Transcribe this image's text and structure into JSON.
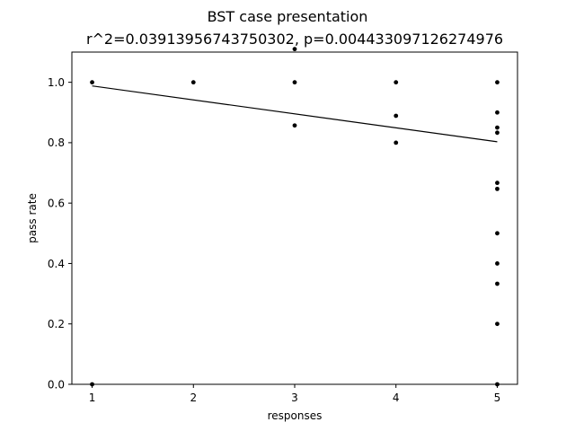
{
  "chart_data": {
    "type": "scatter",
    "title": "BST case presentation",
    "subtitle": "r^2=0.03913956743750302, p=0.004433097126274976",
    "xlabel": "responses",
    "ylabel": "pass rate",
    "xlim": [
      0.8,
      5.2
    ],
    "ylim": [
      0.0,
      1.1
    ],
    "x_ticks": [
      1,
      2,
      3,
      4,
      5
    ],
    "x_tick_labels": [
      "1",
      "2",
      "3",
      "4",
      "5"
    ],
    "y_ticks": [
      0.0,
      0.2,
      0.4,
      0.6,
      0.8,
      1.0
    ],
    "y_tick_labels": [
      "0.0",
      "0.2",
      "0.4",
      "0.6",
      "0.8",
      "1.0"
    ],
    "grid": false,
    "point_color": "#000000",
    "line_color": "#000000",
    "points": [
      {
        "x": 1,
        "y": 1.0
      },
      {
        "x": 1,
        "y": 0.0
      },
      {
        "x": 2,
        "y": 1.0
      },
      {
        "x": 3,
        "y": 1.11
      },
      {
        "x": 3,
        "y": 1.0
      },
      {
        "x": 3,
        "y": 0.857
      },
      {
        "x": 4,
        "y": 1.0
      },
      {
        "x": 4,
        "y": 0.889
      },
      {
        "x": 4,
        "y": 0.8
      },
      {
        "x": 5,
        "y": 1.0
      },
      {
        "x": 5,
        "y": 0.9
      },
      {
        "x": 5,
        "y": 0.85
      },
      {
        "x": 5,
        "y": 0.833
      },
      {
        "x": 5,
        "y": 0.667
      },
      {
        "x": 5,
        "y": 0.647
      },
      {
        "x": 5,
        "y": 0.5
      },
      {
        "x": 5,
        "y": 0.4
      },
      {
        "x": 5,
        "y": 0.333
      },
      {
        "x": 5,
        "y": 0.2
      },
      {
        "x": 5,
        "y": 0.0
      }
    ],
    "regression_line": {
      "x": [
        1,
        5
      ],
      "y": [
        0.988,
        0.803
      ]
    }
  }
}
